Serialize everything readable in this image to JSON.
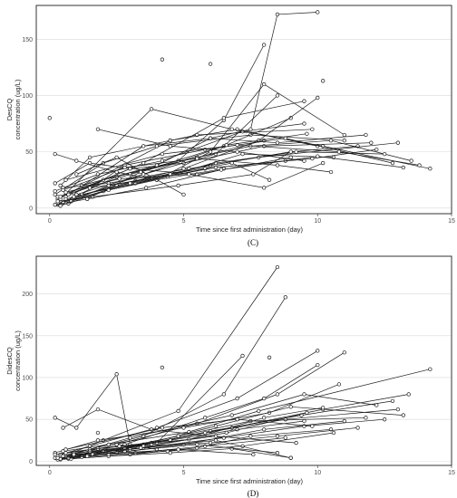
{
  "chart_data": [
    {
      "type": "line",
      "panel_label": "(C)",
      "xlabel": "Time since first administration (day)",
      "ylabel_line1": "DesCQ",
      "ylabel_line2": "concentration (ug/L)",
      "xlim": [
        -0.5,
        15
      ],
      "ylim": [
        -5,
        180
      ],
      "xticks": [
        0,
        5,
        10,
        15
      ],
      "yticks": [
        0,
        50,
        100,
        150
      ],
      "grid": "horizontal",
      "series": [
        {
          "x": [
            0.3,
            4.5,
            5.5,
            9.8
          ],
          "values": [
            8,
            60,
            65,
            70
          ]
        },
        {
          "x": [
            0.2,
            2.0,
            4.0,
            7.5,
            11.0
          ],
          "values": [
            12,
            40,
            55,
            65,
            60
          ]
        },
        {
          "x": [
            0.5,
            3.5,
            6.5,
            9.0
          ],
          "values": [
            5,
            30,
            55,
            80
          ]
        },
        {
          "x": [
            0.4,
            1.5,
            4.5,
            7.0,
            10.0
          ],
          "values": [
            20,
            45,
            60,
            70,
            55
          ]
        },
        {
          "x": [
            0.6,
            3.0,
            5.0,
            8.0,
            12.0
          ],
          "values": [
            10,
            35,
            40,
            55,
            58
          ]
        },
        {
          "x": [
            0.3,
            2.5,
            5.5,
            8.0
          ],
          "values": [
            3,
            28,
            45,
            60
          ]
        },
        {
          "x": [
            0.2,
            1.8,
            4.2,
            7.2,
            9.5
          ],
          "values": [
            15,
            30,
            42,
            68,
            75
          ]
        },
        {
          "x": [
            0.8,
            3.2,
            6.0,
            9.0,
            11.5
          ],
          "values": [
            6,
            24,
            38,
            50,
            55
          ]
        },
        {
          "x": [
            0.5,
            2.2,
            5.2,
            7.8,
            13.0
          ],
          "values": [
            18,
            22,
            35,
            45,
            58
          ]
        },
        {
          "x": [
            0.4,
            3.8,
            6.8,
            10.2,
            14.2
          ],
          "values": [
            8,
            88,
            70,
            55,
            35
          ]
        },
        {
          "x": [
            0.7,
            2.8,
            5.8,
            8.8,
            12.8
          ],
          "values": [
            4,
            38,
            52,
            62,
            40
          ]
        },
        {
          "x": [
            1.0,
            3.5,
            6.2,
            8.5
          ],
          "values": [
            12,
            30,
            48,
            100
          ]
        },
        {
          "x": [
            0.3,
            2.0,
            4.8,
            6.5,
            8.0
          ],
          "values": [
            10,
            25,
            42,
            78,
            145
          ]
        },
        {
          "x": [
            1.2,
            4.0,
            6.0,
            7.5,
            8.5,
            10.0
          ],
          "values": [
            20,
            38,
            62,
            70,
            172,
            174
          ]
        },
        {
          "x": [
            0.6,
            2.5,
            5.0,
            7.8,
            10.0
          ],
          "values": [
            8,
            20,
            35,
            60,
            98
          ]
        },
        {
          "x": [
            0.9,
            3.5,
            6.5,
            9.5
          ],
          "values": [
            14,
            40,
            80,
            95
          ]
        },
        {
          "x": [
            0.2,
            1.5,
            3.0,
            5.5,
            9.0
          ],
          "values": [
            22,
            40,
            35,
            30,
            45
          ]
        },
        {
          "x": [
            0.5,
            2.0,
            4.0,
            6.0,
            8.0,
            11.0
          ],
          "values": [
            5,
            15,
            25,
            50,
            110,
            65
          ]
        },
        {
          "x": [
            0.4,
            3.0,
            5.5,
            7.5,
            10.5,
            13.5
          ],
          "values": [
            10,
            30,
            45,
            55,
            60,
            42
          ]
        },
        {
          "x": [
            1.5,
            3.8,
            6.2,
            9.2,
            12.5
          ],
          "values": [
            18,
            26,
            40,
            50,
            48
          ]
        },
        {
          "x": [
            0.8,
            2.2,
            4.5,
            6.8,
            8.2
          ],
          "values": [
            6,
            20,
            30,
            40,
            25
          ]
        },
        {
          "x": [
            0.3,
            1.2,
            3.2,
            5.8,
            8.8
          ],
          "values": [
            4,
            12,
            22,
            35,
            42
          ]
        },
        {
          "x": [
            0.6,
            4.2,
            7.0,
            10.8,
            13.8
          ],
          "values": [
            25,
            48,
            56,
            50,
            38
          ]
        },
        {
          "x": [
            0.2,
            1.0,
            2.5,
            4.0,
            6.5
          ],
          "values": [
            48,
            42,
            32,
            25,
            35
          ]
        },
        {
          "x": [
            1.8,
            4.5,
            7.0,
            9.5
          ],
          "values": [
            70,
            55,
            50,
            42
          ]
        },
        {
          "x": [
            0.7,
            3.5,
            6.0,
            8.5,
            11.8
          ],
          "values": [
            12,
            55,
            62,
            58,
            65
          ]
        },
        {
          "x": [
            0.5,
            2.8,
            5.5,
            8.5,
            10.5
          ],
          "values": [
            16,
            36,
            44,
            38,
            32
          ]
        },
        {
          "x": [
            1.0,
            2.5,
            5.0
          ],
          "values": [
            30,
            45,
            12
          ]
        },
        {
          "x": [
            0.4,
            2.2,
            4.4,
            7.2,
            10.6
          ],
          "values": [
            2,
            16,
            28,
            48,
            45
          ]
        },
        {
          "x": [
            0.9,
            3.0,
            6.2,
            9.8,
            12.2
          ],
          "values": [
            10,
            22,
            36,
            44,
            52
          ]
        },
        {
          "x": [
            0.3,
            1.6,
            4.8,
            7.6,
            9.0
          ],
          "values": [
            6,
            10,
            20,
            30,
            50
          ]
        },
        {
          "x": [
            0.6,
            2.6,
            5.2,
            8.0,
            10.2
          ],
          "values": [
            14,
            26,
            30,
            18,
            40
          ]
        },
        {
          "x": [
            1.4,
            3.4,
            6.6,
            9.6
          ],
          "values": [
            8,
            32,
            56,
            66
          ]
        },
        {
          "x": [
            0.2,
            1.4,
            3.6,
            6.4,
            10.0,
            13.2
          ],
          "values": [
            3,
            8,
            18,
            34,
            46,
            36
          ]
        }
      ],
      "isolated_points": {
        "x": [
          0.0,
          4.2,
          6.0,
          10.2
        ],
        "values": [
          80,
          132,
          128,
          113
        ]
      }
    },
    {
      "type": "line",
      "panel_label": "(D)",
      "xlabel": "Time since first administration (day)",
      "ylabel_line1": "DidesCQ",
      "ylabel_line2": "concentration (ug/L)",
      "xlim": [
        -0.5,
        15
      ],
      "ylim": [
        -5,
        245
      ],
      "xticks": [
        0,
        5,
        10,
        15
      ],
      "yticks": [
        0,
        50,
        100,
        150,
        200
      ],
      "grid": "horizontal",
      "series": [
        {
          "x": [
            0.3,
            2.0,
            4.8,
            8.5
          ],
          "values": [
            3,
            25,
            60,
            232
          ]
        },
        {
          "x": [
            0.2,
            3.5,
            6.5,
            8.8
          ],
          "values": [
            4,
            30,
            80,
            196
          ]
        },
        {
          "x": [
            0.5,
            2.5,
            5.5,
            8.5,
            11.0
          ],
          "values": [
            5,
            20,
            45,
            80,
            130
          ]
        },
        {
          "x": [
            0.4,
            1.5,
            4.0,
            7.0,
            10.0
          ],
          "values": [
            8,
            18,
            40,
            75,
            132
          ]
        },
        {
          "x": [
            0.6,
            3.0,
            6.8,
            9.5,
            12.2
          ],
          "values": [
            6,
            28,
            55,
            80,
            67
          ]
        },
        {
          "x": [
            0.3,
            2.8,
            5.8,
            8.0,
            10.0
          ],
          "values": [
            2,
            20,
            52,
            75,
            115
          ]
        },
        {
          "x": [
            0.2,
            1.8,
            5.0,
            8.2,
            10.8
          ],
          "values": [
            10,
            25,
            40,
            58,
            92
          ]
        },
        {
          "x": [
            0.8,
            3.2,
            6.0,
            9.4,
            12.8
          ],
          "values": [
            4,
            18,
            36,
            55,
            72
          ]
        },
        {
          "x": [
            0.5,
            2.2,
            5.2,
            7.8,
            14.2
          ],
          "values": [
            12,
            20,
            35,
            60,
            110
          ]
        },
        {
          "x": [
            0.4,
            3.8,
            6.8,
            10.2,
            13.4
          ],
          "values": [
            5,
            22,
            40,
            62,
            80
          ]
        },
        {
          "x": [
            0.7,
            2.8,
            5.8,
            8.8,
            13.0
          ],
          "values": [
            3,
            15,
            34,
            50,
            62
          ]
        },
        {
          "x": [
            1.0,
            3.5,
            6.2,
            9.0,
            13.2
          ],
          "values": [
            7,
            20,
            42,
            65,
            55
          ]
        },
        {
          "x": [
            0.3,
            2.0,
            4.8,
            7.5,
            11.8
          ],
          "values": [
            4,
            12,
            30,
            48,
            52
          ]
        },
        {
          "x": [
            0.6,
            2.5,
            5.0,
            8.0,
            11.0
          ],
          "values": [
            6,
            10,
            20,
            38,
            48
          ]
        },
        {
          "x": [
            0.9,
            3.5,
            6.5,
            9.5,
            12.5
          ],
          "values": [
            10,
            16,
            28,
            42,
            50
          ]
        },
        {
          "x": [
            0.2,
            1.0,
            2.5,
            3.0,
            4.0
          ],
          "values": [
            52,
            40,
            104,
            20,
            14
          ]
        },
        {
          "x": [
            0.5,
            1.8,
            3.8,
            6.5
          ],
          "values": [
            40,
            62,
            38,
            28
          ]
        },
        {
          "x": [
            0.4,
            3.0,
            5.5,
            7.5,
            10.5
          ],
          "values": [
            2,
            8,
            16,
            30,
            38
          ]
        },
        {
          "x": [
            1.5,
            3.8,
            6.2,
            9.2
          ],
          "values": [
            12,
            20,
            30,
            22
          ]
        },
        {
          "x": [
            0.8,
            2.2,
            4.5,
            6.8,
            9.0
          ],
          "values": [
            3,
            6,
            10,
            15,
            4
          ]
        },
        {
          "x": [
            0.3,
            1.2,
            3.2,
            5.8,
            8.8
          ],
          "values": [
            2,
            5,
            10,
            18,
            28
          ]
        },
        {
          "x": [
            0.6,
            4.2,
            7.0,
            9.8
          ],
          "values": [
            14,
            40,
            50,
            42
          ]
        },
        {
          "x": [
            0.2,
            1.5,
            4.0,
            7.2
          ],
          "values": [
            8,
            14,
            22,
            126
          ]
        },
        {
          "x": [
            1.8,
            4.5,
            7.0,
            9.5
          ],
          "values": [
            15,
            25,
            38,
            48
          ]
        },
        {
          "x": [
            0.7,
            3.5,
            6.0,
            8.5,
            11.5
          ],
          "values": [
            4,
            18,
            22,
            30,
            40
          ]
        },
        {
          "x": [
            0.5,
            2.8,
            5.5,
            8.5
          ],
          "values": [
            6,
            12,
            20,
            10
          ]
        },
        {
          "x": [
            0.4,
            2.2,
            4.4,
            7.2,
            10.6
          ],
          "values": [
            3,
            8,
            12,
            18,
            34
          ]
        },
        {
          "x": [
            0.9,
            3.0,
            6.2,
            9.0
          ],
          "values": [
            8,
            14,
            25,
            4
          ]
        },
        {
          "x": [
            0.3,
            1.6,
            4.8,
            7.6
          ],
          "values": [
            4,
            8,
            14,
            8
          ]
        },
        {
          "x": [
            0.6,
            2.6,
            5.2,
            8.0,
            10.2
          ],
          "values": [
            10,
            18,
            26,
            52,
            64
          ]
        },
        {
          "x": [
            1.4,
            3.4,
            6.6,
            9.6
          ],
          "values": [
            6,
            16,
            34,
            58
          ]
        }
      ],
      "isolated_points": {
        "x": [
          4.2,
          8.2,
          1.8
        ],
        "values": [
          112,
          124,
          34
        ]
      }
    }
  ]
}
